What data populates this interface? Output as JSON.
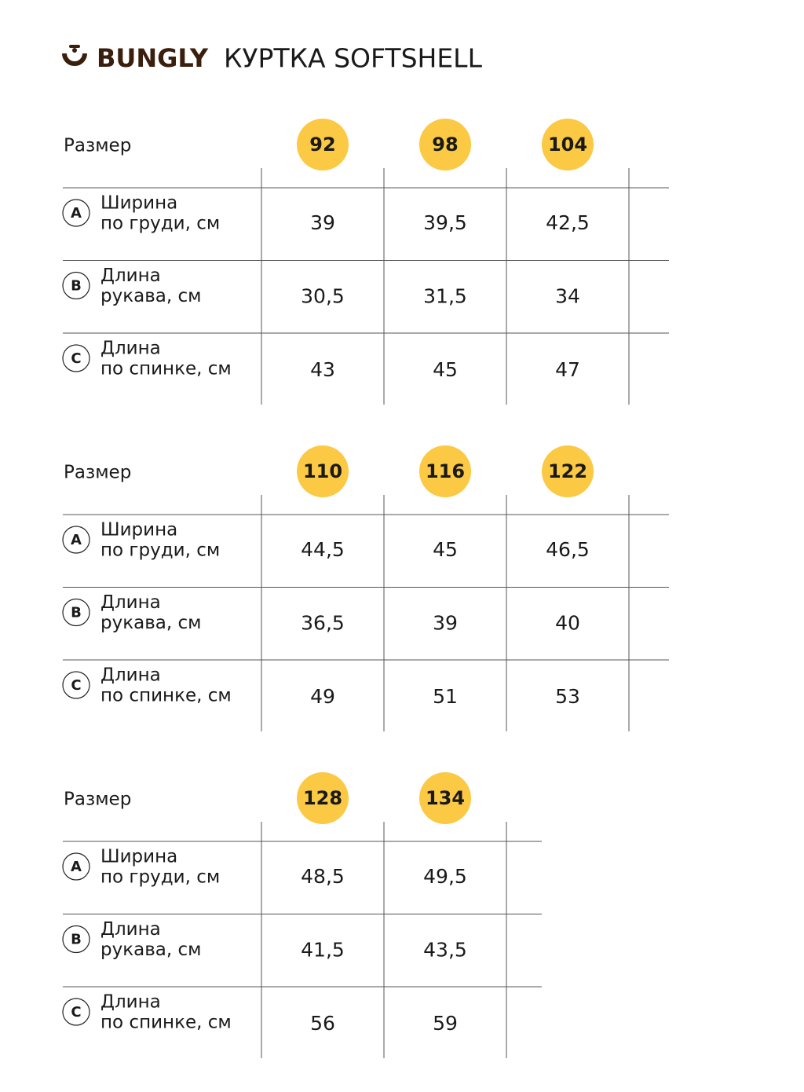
{
  "header": {
    "brand": "BUNGLY",
    "title": "КУРТКА SOFTSHELL"
  },
  "tables": [
    {
      "size_label": "Размер",
      "sizes": [
        "92",
        "98",
        "104"
      ],
      "rows": [
        {
          "letter": "A",
          "label": [
            "Ширина",
            "по груди, см"
          ],
          "values": [
            "39",
            "39,5",
            "42,5"
          ]
        },
        {
          "letter": "B",
          "label": [
            "Длина",
            "рукава, см"
          ],
          "values": [
            "30,5",
            "31,5",
            "34"
          ]
        },
        {
          "letter": "C",
          "label": [
            "Длина",
            "по спинке, см"
          ],
          "values": [
            "43",
            "45",
            "47"
          ]
        }
      ]
    },
    {
      "size_label": "Размер",
      "sizes": [
        "110",
        "116",
        "122"
      ],
      "rows": [
        {
          "letter": "A",
          "label": [
            "Ширина",
            "по груди, см"
          ],
          "values": [
            "44,5",
            "45",
            "46,5"
          ]
        },
        {
          "letter": "B",
          "label": [
            "Длина",
            "рукава, см"
          ],
          "values": [
            "36,5",
            "39",
            "40"
          ]
        },
        {
          "letter": "C",
          "label": [
            "Длина",
            "по спинке, см"
          ],
          "values": [
            "49",
            "51",
            "53"
          ]
        }
      ]
    },
    {
      "size_label": "Размер",
      "sizes": [
        "128",
        "134"
      ],
      "rows": [
        {
          "letter": "A",
          "label": [
            "Ширина",
            "по груди, см"
          ],
          "values": [
            "48,5",
            "49,5"
          ]
        },
        {
          "letter": "B",
          "label": [
            "Длина",
            "рукава, см"
          ],
          "values": [
            "41,5",
            "43,5"
          ]
        },
        {
          "letter": "C",
          "label": [
            "Длина",
            "по спинке, см"
          ],
          "values": [
            "56",
            "59"
          ]
        }
      ]
    }
  ]
}
